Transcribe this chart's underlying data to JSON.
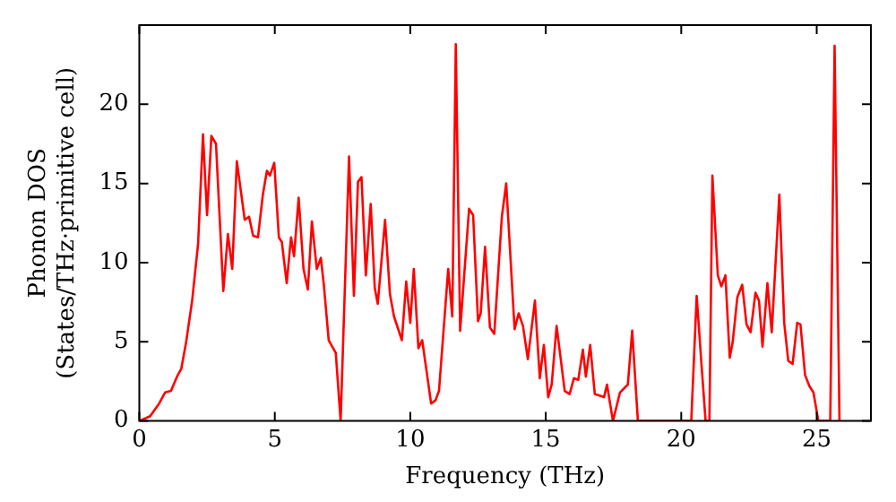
{
  "chart_data": {
    "type": "line",
    "xlabel": "Frequency (THz)",
    "ylabel": "Phonon DOS\n(States/THz·primitive cell)",
    "xlim": [
      0,
      27
    ],
    "xticks": [
      0,
      5,
      10,
      15,
      20,
      25
    ],
    "ylim": [
      0,
      25
    ],
    "yticks": [
      0,
      5,
      10,
      15,
      20
    ],
    "grid": false,
    "legend": false,
    "marker": "none",
    "line_style": "solid",
    "series": [
      {
        "color": "#ff0000",
        "x": [
          0,
          0.4,
          0.73,
          0.95,
          1.17,
          1.39,
          1.55,
          1.73,
          1.95,
          2.17,
          2.35,
          2.5,
          2.66,
          2.83,
          3.1,
          3.27,
          3.43,
          3.6,
          3.89,
          4.05,
          4.2,
          4.38,
          4.56,
          4.71,
          4.82,
          4.98,
          5.15,
          5.26,
          5.44,
          5.6,
          5.71,
          5.88,
          6.06,
          6.22,
          6.37,
          6.55,
          6.7,
          6.81,
          6.99,
          7.25,
          7.43,
          7.74,
          7.92,
          8.07,
          8.2,
          8.36,
          8.54,
          8.69,
          8.8,
          9.07,
          9.25,
          9.4,
          9.69,
          9.85,
          10.0,
          10.13,
          10.3,
          10.44,
          10.77,
          10.93,
          11.06,
          11.4,
          11.55,
          11.68,
          11.84,
          12.17,
          12.32,
          12.5,
          12.6,
          12.76,
          12.94,
          13.1,
          13.38,
          13.54,
          13.85,
          14.0,
          14.16,
          14.34,
          14.6,
          14.78,
          14.93,
          15.09,
          15.22,
          15.4,
          15.7,
          15.88,
          16.04,
          16.2,
          16.37,
          16.48,
          16.64,
          16.81,
          17.15,
          17.26,
          17.48,
          17.74,
          18.03,
          18.19,
          18.4,
          20.0,
          20.37,
          20.57,
          20.75,
          20.9,
          21.04,
          21.15,
          21.35,
          21.48,
          21.63,
          21.79,
          21.9,
          22.07,
          22.25,
          22.41,
          22.56,
          22.74,
          22.87,
          23.0,
          23.18,
          23.34,
          23.62,
          23.8,
          23.95,
          24.11,
          24.28,
          24.4,
          24.57,
          24.73,
          24.88,
          25.06,
          25.5,
          25.66,
          25.84
        ],
        "values": [
          0,
          0.3,
          1.1,
          1.8,
          1.9,
          2.8,
          3.3,
          5.0,
          7.6,
          11.2,
          18.1,
          13.0,
          18.0,
          17.5,
          8.2,
          11.8,
          9.6,
          16.4,
          12.7,
          12.9,
          11.7,
          11.6,
          14.3,
          15.8,
          15.5,
          16.3,
          11.6,
          11.3,
          8.7,
          11.6,
          10.4,
          14.1,
          9.6,
          8.3,
          12.6,
          9.6,
          10.3,
          8.6,
          5.1,
          4.3,
          0,
          16.7,
          7.9,
          15.1,
          15.4,
          9.2,
          13.7,
          8.4,
          7.4,
          12.7,
          8.0,
          6.6,
          5.1,
          8.8,
          6.2,
          9.6,
          4.6,
          5.1,
          1.1,
          1.3,
          1.9,
          9.6,
          6.6,
          23.8,
          5.7,
          13.4,
          13.0,
          6.3,
          6.8,
          11.0,
          5.9,
          5.5,
          12.9,
          15.0,
          5.8,
          6.8,
          6.0,
          3.9,
          7.6,
          2.7,
          4.8,
          1.5,
          2.3,
          6.0,
          1.9,
          1.7,
          2.7,
          2.6,
          4.5,
          2.8,
          4.8,
          1.7,
          1.5,
          2.3,
          0,
          1.8,
          2.3,
          5.7,
          0,
          0,
          0,
          7.9,
          3.5,
          0,
          0,
          15.5,
          9.2,
          8.5,
          9.2,
          4.0,
          5.0,
          7.8,
          8.6,
          6.1,
          5.6,
          8.1,
          7.6,
          4.7,
          8.7,
          5.6,
          14.3,
          6.2,
          3.8,
          3.6,
          6.2,
          6.1,
          2.9,
          2.2,
          1.8,
          0,
          0,
          23.7,
          0
        ]
      }
    ]
  }
}
